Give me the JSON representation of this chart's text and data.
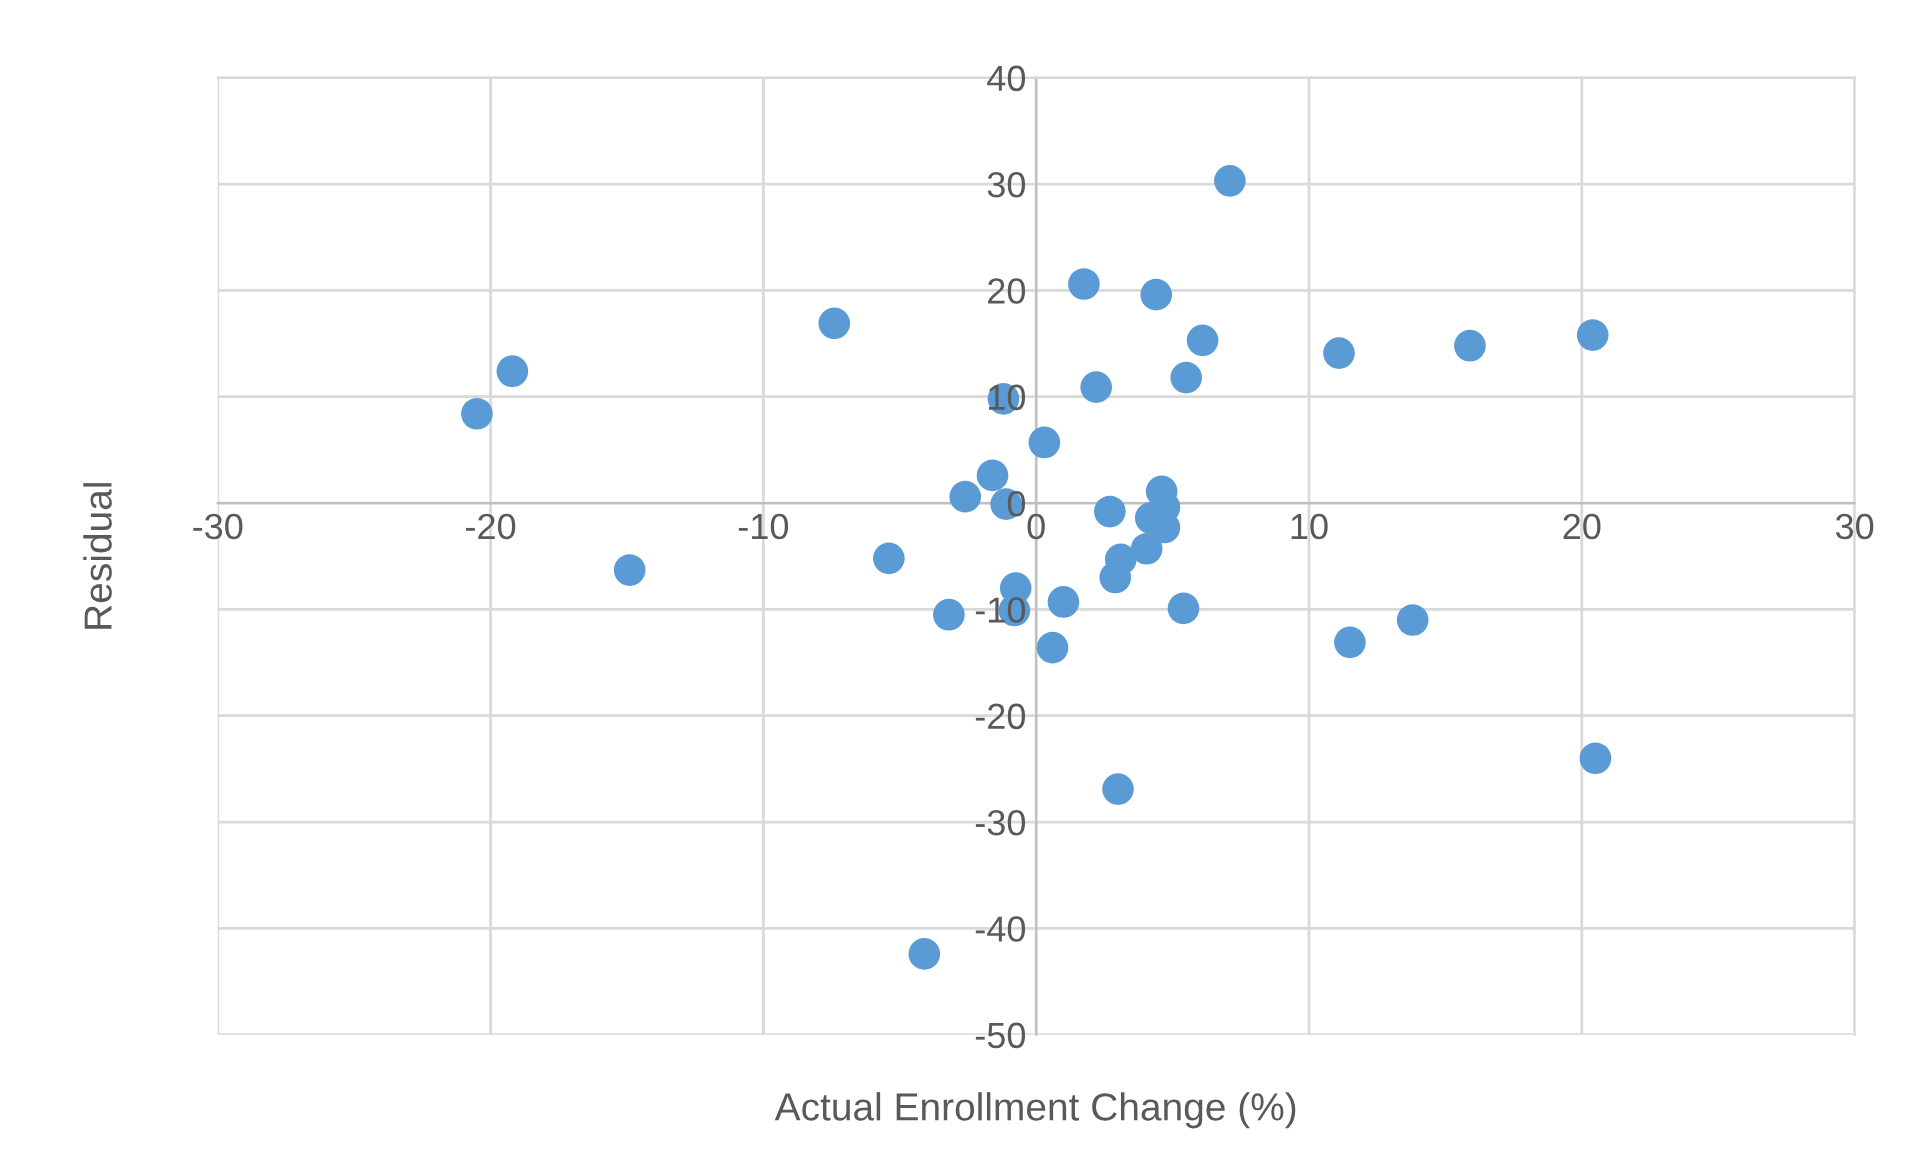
{
  "chart_data": {
    "type": "scatter",
    "xlabel": "Actual Enrollment Change (%)",
    "ylabel": "Residual",
    "x": [
      -20.5,
      -19.2,
      -14.9,
      -7.4,
      -5.4,
      -3.2,
      -2.6,
      -1.6,
      -1.2,
      -1.1,
      -0.75,
      -0.8,
      0.3,
      0.6,
      1.0,
      1.75,
      2.2,
      2.7,
      3.1,
      2.9,
      4.05,
      4.2,
      4.4,
      4.6,
      4.7,
      4.7,
      5.4,
      5.5,
      6.1,
      7.1,
      3.0,
      -4.1,
      11.1,
      11.5,
      13.8,
      15.9,
      20.4,
      20.5
    ],
    "values": [
      8.4,
      12.4,
      -6.3,
      16.9,
      -5.2,
      -10.5,
      0.6,
      2.6,
      9.8,
      -0.1,
      -8.0,
      -10.1,
      5.7,
      -13.6,
      -9.3,
      20.6,
      10.9,
      -0.8,
      -5.3,
      -7.0,
      -4.3,
      -1.4,
      19.6,
      1.1,
      -0.4,
      -2.3,
      -9.9,
      11.8,
      15.3,
      30.3,
      -26.9,
      -42.4,
      14.1,
      -13.1,
      -11.0,
      14.8,
      15.8,
      -24.0
    ],
    "color": "#5b9bd5",
    "marker": "circle",
    "xlim": [
      -30,
      30
    ],
    "xticks": [
      -30,
      -20,
      -10,
      0,
      10,
      20,
      30
    ],
    "ylim": [
      -50,
      40
    ],
    "yticks": [
      -50,
      -40,
      -30,
      -20,
      -10,
      0,
      10,
      20,
      30,
      40
    ],
    "grid": true
  }
}
